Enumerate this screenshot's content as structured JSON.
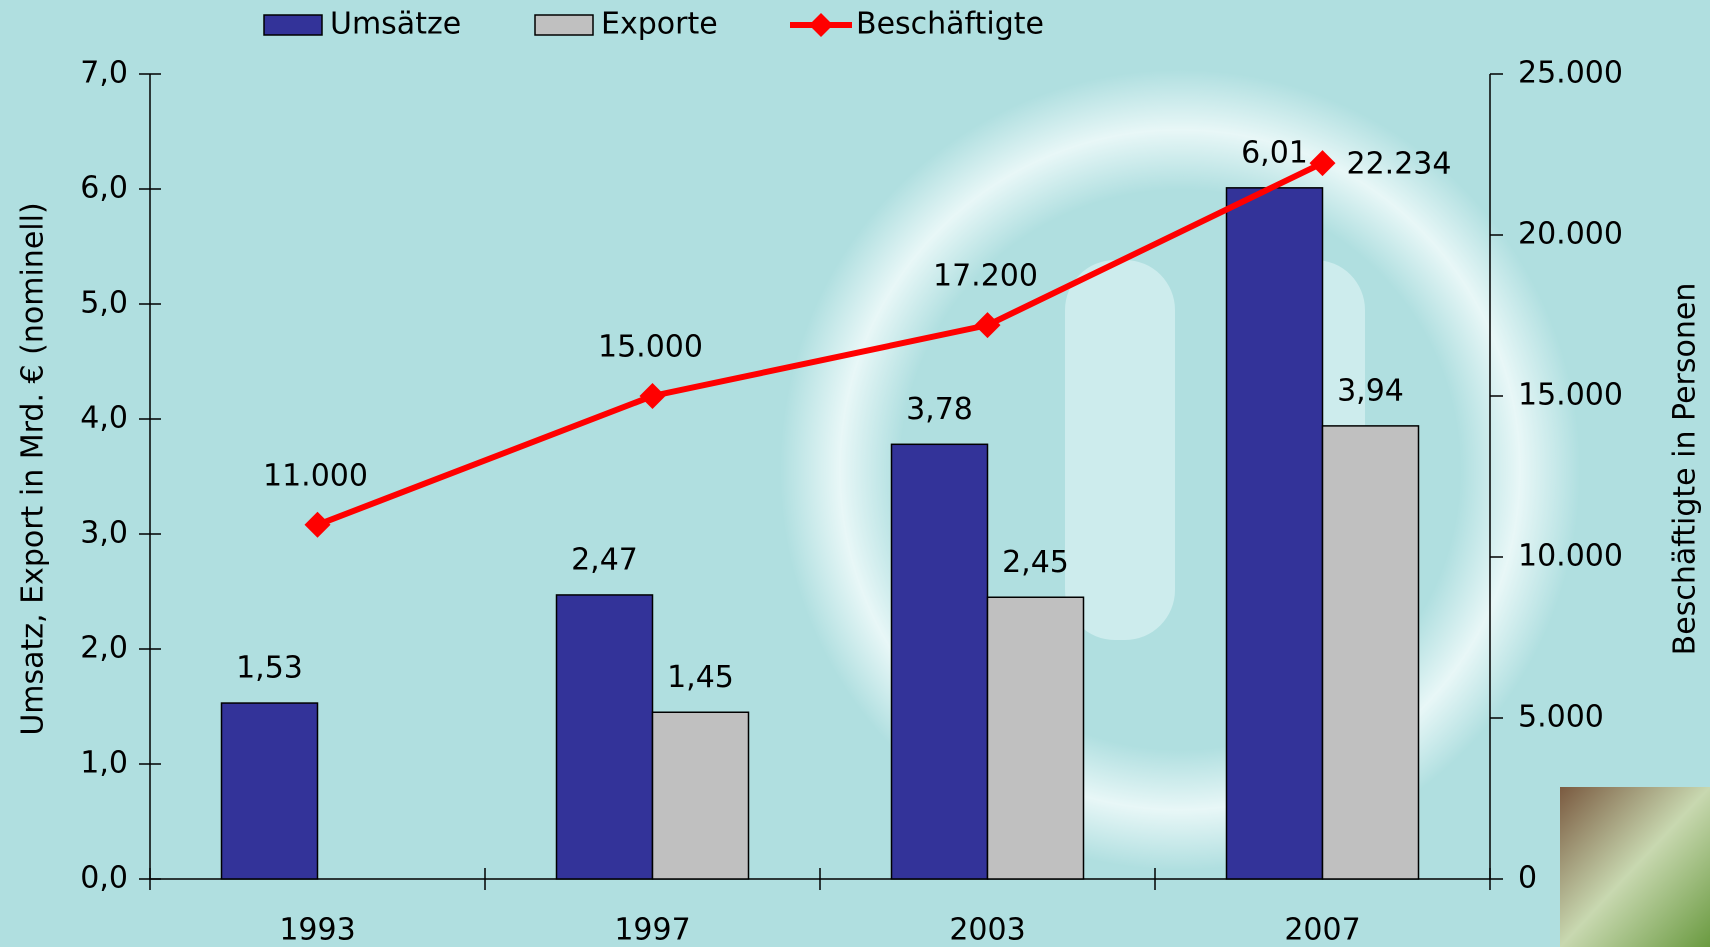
{
  "chart_data": {
    "type": "bar",
    "categories": [
      "1993",
      "1997",
      "2003",
      "2007"
    ],
    "series": [
      {
        "name": "Umsätze",
        "type": "bar",
        "color": "#333399",
        "values": [
          1.53,
          2.47,
          3.78,
          6.01
        ],
        "value_labels": [
          "1,53",
          "2,47",
          "3,78",
          "6,01"
        ]
      },
      {
        "name": "Exporte",
        "type": "bar",
        "color": "#c0c0c0",
        "values": [
          null,
          1.45,
          2.45,
          3.94
        ],
        "value_labels": [
          null,
          "1,45",
          "2,45",
          "3,94"
        ]
      },
      {
        "name": "Beschäftigte",
        "type": "line",
        "axis": "y2",
        "color": "#ff0000",
        "values": [
          11000,
          15000,
          17200,
          22234
        ],
        "value_labels": [
          "11.000",
          "15.000",
          "17.200",
          "22.234"
        ]
      }
    ],
    "y_label": "Umsatz, Export in Mrd. € (nominell)",
    "y2_label": "Beschäftigte in Personen",
    "ylim": [
      0,
      7
    ],
    "yticks": [
      {
        "value": 0,
        "label": "0,0"
      },
      {
        "value": 1,
        "label": "1,0"
      },
      {
        "value": 2,
        "label": "2,0"
      },
      {
        "value": 3,
        "label": "3,0"
      },
      {
        "value": 4,
        "label": "4,0"
      },
      {
        "value": 5,
        "label": "5,0"
      },
      {
        "value": 6,
        "label": "6,0"
      },
      {
        "value": 7,
        "label": "7,0"
      }
    ],
    "y2lim": [
      0,
      25000
    ],
    "y2ticks": [
      0,
      {
        "value": 5000,
        "label": "5.000"
      },
      {
        "value": 10000,
        "label": "10.000"
      },
      {
        "value": 15000,
        "label": "15.000"
      },
      {
        "value": 20000,
        "label": "20.000"
      },
      {
        "value": 25000,
        "label": "25.000"
      }
    ],
    "legend": "top"
  }
}
